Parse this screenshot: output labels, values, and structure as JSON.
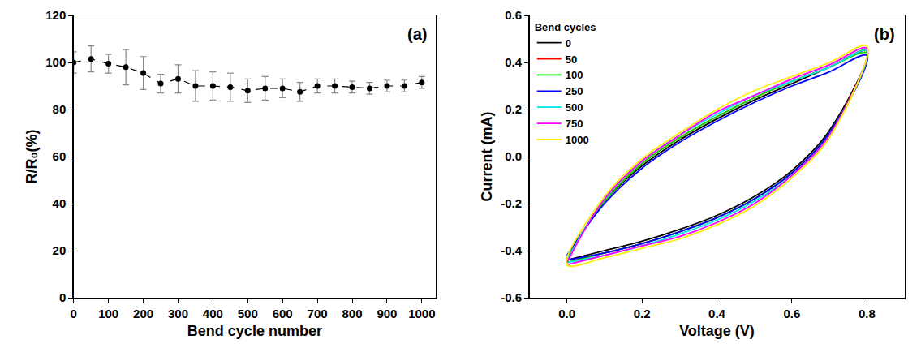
{
  "chart_data": [
    {
      "type": "line",
      "panel_label": "(a)",
      "xlabel": "Bend cycle number",
      "ylabel": "R/R₀(%)",
      "x": [
        0,
        50,
        100,
        150,
        200,
        250,
        300,
        350,
        400,
        450,
        500,
        550,
        600,
        650,
        700,
        750,
        800,
        850,
        900,
        950,
        1000
      ],
      "values": [
        100,
        101.5,
        99.5,
        98,
        95.5,
        91,
        93,
        90,
        90,
        89.5,
        88,
        89,
        89,
        87.5,
        90,
        90,
        89.5,
        89,
        90,
        90,
        91.5
      ],
      "error": [
        4.5,
        5.5,
        4,
        7.5,
        7,
        4,
        6,
        6.5,
        6,
        6,
        5,
        5,
        4,
        4,
        3,
        3,
        2.5,
        2.5,
        2.5,
        2.5,
        2.5
      ],
      "color": "#000000",
      "marker": "circle",
      "line_style": "dash",
      "xlim": [
        0,
        1040
      ],
      "xticks": [
        0,
        100,
        200,
        300,
        400,
        500,
        600,
        700,
        800,
        900,
        1000
      ],
      "ylim": [
        0,
        120
      ],
      "yticks": [
        0,
        20,
        40,
        60,
        80,
        100,
        120
      ],
      "grid": false
    },
    {
      "type": "line",
      "panel_label": "(b)",
      "xlabel": "Voltage (V)",
      "ylabel": "Current (mA)",
      "legend": "top left",
      "legend_title": "Bend cycles",
      "x": [
        0,
        0.1,
        0.2,
        0.3,
        0.4,
        0.5,
        0.6,
        0.7,
        0.8,
        0.7,
        0.6,
        0.5,
        0.4,
        0.3,
        0.2,
        0.1,
        0
      ],
      "series": [
        {
          "name": "0",
          "color": "#000000",
          "values": [
            -0.43,
            -0.19,
            -0.04,
            0.07,
            0.16,
            0.24,
            0.31,
            0.38,
            0.45,
            0.11,
            -0.06,
            -0.17,
            -0.25,
            -0.31,
            -0.36,
            -0.4,
            -0.44
          ]
        },
        {
          "name": "50",
          "color": "#ff0000",
          "values": [
            -0.43,
            -0.19,
            -0.03,
            0.08,
            0.17,
            0.25,
            0.32,
            0.38,
            0.45,
            0.1,
            -0.07,
            -0.18,
            -0.26,
            -0.32,
            -0.37,
            -0.41,
            -0.45
          ]
        },
        {
          "name": "100",
          "color": "#00e000",
          "values": [
            -0.43,
            -0.19,
            -0.03,
            0.08,
            0.17,
            0.25,
            0.32,
            0.38,
            0.44,
            0.1,
            -0.07,
            -0.18,
            -0.26,
            -0.32,
            -0.37,
            -0.41,
            -0.45
          ]
        },
        {
          "name": "250",
          "color": "#0000ff",
          "values": [
            -0.42,
            -0.2,
            -0.05,
            0.06,
            0.15,
            0.23,
            0.3,
            0.36,
            0.43,
            0.1,
            -0.07,
            -0.18,
            -0.26,
            -0.32,
            -0.37,
            -0.41,
            -0.44
          ]
        },
        {
          "name": "500",
          "color": "#00e5ee",
          "values": [
            -0.44,
            -0.18,
            -0.02,
            0.09,
            0.18,
            0.26,
            0.32,
            0.38,
            0.45,
            0.09,
            -0.08,
            -0.19,
            -0.27,
            -0.33,
            -0.38,
            -0.42,
            -0.45
          ]
        },
        {
          "name": "750",
          "color": "#ff00ff",
          "values": [
            -0.45,
            -0.18,
            -0.02,
            0.09,
            0.19,
            0.26,
            0.33,
            0.39,
            0.46,
            0.09,
            -0.08,
            -0.2,
            -0.28,
            -0.34,
            -0.38,
            -0.42,
            -0.46
          ]
        },
        {
          "name": "1000",
          "color": "#ffee00",
          "values": [
            -0.46,
            -0.17,
            -0.01,
            0.1,
            0.2,
            0.28,
            0.34,
            0.4,
            0.47,
            0.08,
            -0.09,
            -0.21,
            -0.29,
            -0.35,
            -0.39,
            -0.43,
            -0.46
          ]
        }
      ],
      "xlim": [
        -0.1,
        0.9
      ],
      "xticks": [
        {
          "value": 0,
          "label": "0.0"
        },
        0.2,
        0.4,
        0.6,
        0.8
      ],
      "ylim": [
        -0.6,
        0.6
      ],
      "yticks": [
        -0.6,
        -0.4,
        -0.2,
        {
          "value": 0,
          "label": "0.0"
        },
        0.2,
        0.4,
        0.6
      ],
      "grid": false
    }
  ]
}
